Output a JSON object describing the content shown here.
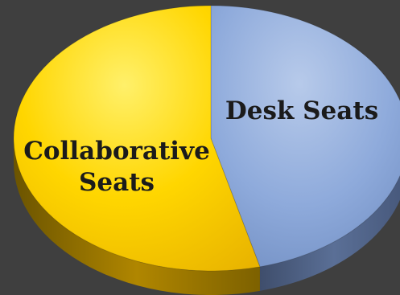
{
  "chart_data": {
    "type": "pie",
    "style": "3d",
    "series": [
      {
        "label_lines": [
          "Desk Seats"
        ],
        "value": 46,
        "color": "#8eaadb"
      },
      {
        "label_lines": [
          "Collaborative",
          "Seats"
        ],
        "value": 54,
        "color": "#ffcc00"
      }
    ]
  }
}
